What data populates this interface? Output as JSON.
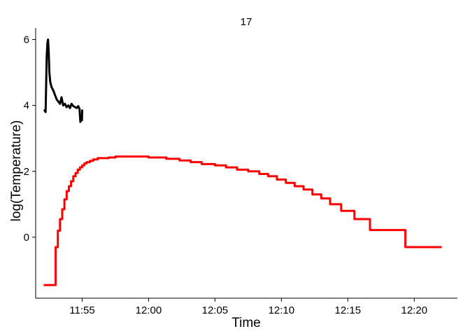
{
  "chart_data": {
    "type": "line",
    "title": "17",
    "xlabel": "Time",
    "ylabel": "log(Temperature)",
    "xlim": [
      "11:51:30",
      "12:23:15"
    ],
    "ylim": [
      -1.85,
      6.35
    ],
    "grid": false,
    "x_ticks": [
      "11:55",
      "12:00",
      "12:05",
      "12:10",
      "12:15",
      "12:20"
    ],
    "y_ticks": [
      0,
      2,
      4,
      6
    ],
    "series": [
      {
        "color": "#000000",
        "style": "line",
        "points": [
          [
            "11:52:10",
            3.85
          ],
          [
            "11:52:15",
            3.8
          ],
          [
            "11:52:20",
            5.5
          ],
          [
            "11:52:23",
            5.9
          ],
          [
            "11:52:26",
            6.0
          ],
          [
            "11:52:29",
            5.6
          ],
          [
            "11:52:32",
            5.0
          ],
          [
            "11:52:36",
            4.7
          ],
          [
            "11:52:42",
            4.55
          ],
          [
            "11:52:50",
            4.45
          ],
          [
            "11:52:58",
            4.3
          ],
          [
            "11:53:05",
            4.18
          ],
          [
            "11:53:12",
            4.12
          ],
          [
            "11:53:20",
            4.05
          ],
          [
            "11:53:27",
            4.25
          ],
          [
            "11:53:34",
            4.0
          ],
          [
            "11:53:42",
            4.05
          ],
          [
            "11:53:50",
            3.95
          ],
          [
            "11:53:58",
            4.0
          ],
          [
            "11:54:05",
            3.92
          ],
          [
            "11:54:12",
            4.05
          ],
          [
            "11:54:20",
            3.98
          ],
          [
            "11:54:28",
            3.95
          ],
          [
            "11:54:35",
            3.92
          ],
          [
            "11:54:42",
            3.98
          ],
          [
            "11:54:48",
            3.9
          ],
          [
            "11:54:52",
            3.5
          ],
          [
            "11:54:56",
            3.58
          ],
          [
            "11:54:59",
            3.55
          ],
          [
            "11:55:00",
            3.85
          ]
        ]
      },
      {
        "color": "#ff0000",
        "style": "step",
        "points": [
          [
            "11:52:10",
            -1.45
          ],
          [
            "11:53:00",
            -0.3
          ],
          [
            "11:53:10",
            0.2
          ],
          [
            "11:53:20",
            0.55
          ],
          [
            "11:53:30",
            0.85
          ],
          [
            "11:53:40",
            1.15
          ],
          [
            "11:53:50",
            1.4
          ],
          [
            "11:54:00",
            1.55
          ],
          [
            "11:54:10",
            1.7
          ],
          [
            "11:54:20",
            1.85
          ],
          [
            "11:54:30",
            1.95
          ],
          [
            "11:54:40",
            2.05
          ],
          [
            "11:54:50",
            2.12
          ],
          [
            "11:55:00",
            2.18
          ],
          [
            "11:55:10",
            2.24
          ],
          [
            "11:55:20",
            2.28
          ],
          [
            "11:55:35",
            2.32
          ],
          [
            "11:55:50",
            2.36
          ],
          [
            "11:56:10",
            2.4
          ],
          [
            "11:57:00",
            2.42
          ],
          [
            "11:57:30",
            2.45
          ],
          [
            "12:00:00",
            2.42
          ],
          [
            "12:01:20",
            2.38
          ],
          [
            "12:02:20",
            2.33
          ],
          [
            "12:03:10",
            2.28
          ],
          [
            "12:04:00",
            2.22
          ],
          [
            "12:05:00",
            2.18
          ],
          [
            "12:05:50",
            2.12
          ],
          [
            "12:06:40",
            2.05
          ],
          [
            "12:07:30",
            2.0
          ],
          [
            "12:08:20",
            1.92
          ],
          [
            "12:09:00",
            1.85
          ],
          [
            "12:09:40",
            1.75
          ],
          [
            "12:10:20",
            1.65
          ],
          [
            "12:11:00",
            1.55
          ],
          [
            "12:11:40",
            1.45
          ],
          [
            "12:12:20",
            1.3
          ],
          [
            "12:13:00",
            1.18
          ],
          [
            "12:13:40",
            1.0
          ],
          [
            "12:14:30",
            0.8
          ],
          [
            "12:15:30",
            0.55
          ],
          [
            "12:16:40",
            0.22
          ],
          [
            "12:19:20",
            -0.3
          ],
          [
            "12:22:00",
            -0.3
          ]
        ]
      }
    ]
  }
}
